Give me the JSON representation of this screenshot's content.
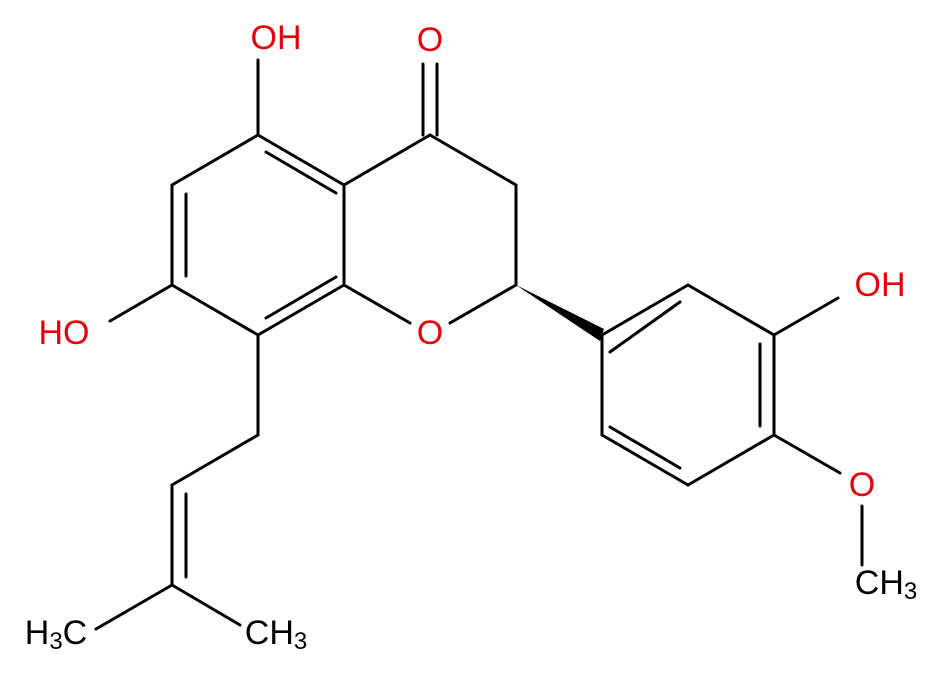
{
  "labels": [
    {
      "parts": [
        "OH"
      ]
    },
    {
      "parts": [
        "O"
      ]
    },
    {
      "parts": [
        "HO"
      ]
    },
    {
      "parts": [
        "O"
      ]
    },
    {
      "parts": [
        "OH"
      ]
    },
    {
      "parts": [
        "O"
      ]
    },
    {
      "parts": [
        "CH",
        "3"
      ]
    },
    {
      "parts": [
        "H",
        "3",
        "C"
      ]
    },
    {
      "parts": [
        "CH",
        "3"
      ]
    }
  ]
}
